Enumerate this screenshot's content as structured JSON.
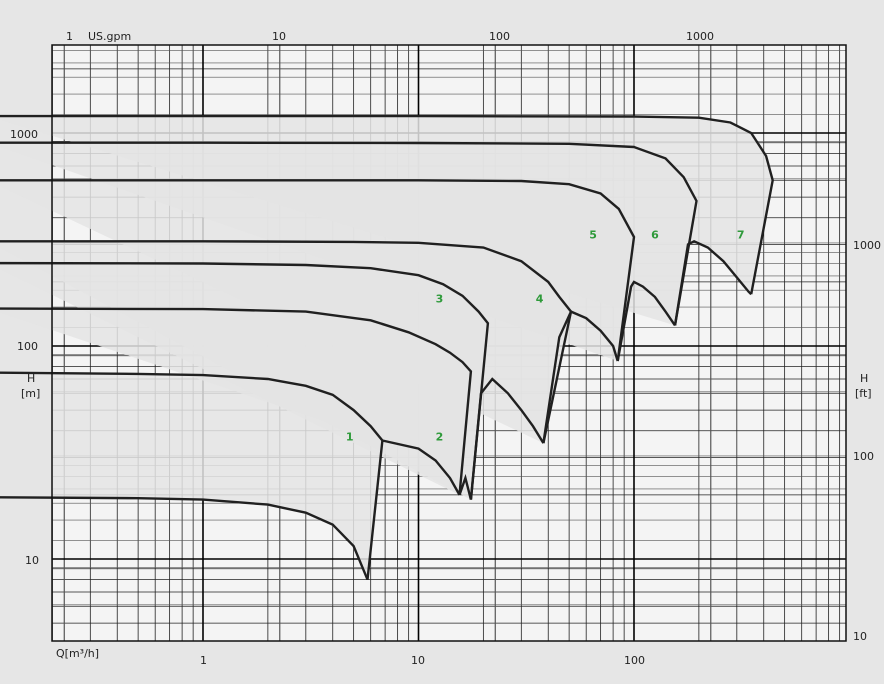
{
  "chart_data": {
    "type": "line",
    "title": "",
    "x_scale": "log",
    "y_scale": "log",
    "grid": true,
    "colors": {
      "page_background": "#e6e6e6",
      "plot_background": "#f4f4f4",
      "zone_fill": "#e4e4e4",
      "curve": "#202020",
      "label": "#2e9a3a"
    },
    "bottom_axis": {
      "label": "Q[m³/h]",
      "unit": "m³/h",
      "range": [
        0.1,
        1000
      ],
      "ticks": [
        "1",
        "10",
        "100"
      ]
    },
    "top_axis": {
      "label": "US.gpm",
      "unit": "US.gpm",
      "ticks": [
        "1",
        "10",
        "100",
        "1000"
      ]
    },
    "left_axis": {
      "label": "H",
      "unit": "[m]",
      "range": [
        4,
        2000
      ],
      "ticks": [
        "10",
        "100",
        "1000"
      ]
    },
    "right_axis": {
      "label": "H",
      "unit": "[ft]",
      "ticks": [
        "10",
        "100",
        "1000"
      ]
    },
    "zones": [
      {
        "label": "1",
        "label_at": [
          4.6,
          36
        ],
        "upper": {
          "q": [
            0.1,
            0.5,
            1,
            2,
            3,
            4,
            5,
            6,
            6.8
          ],
          "h": [
            75,
            74,
            73,
            70,
            65,
            59,
            50,
            42,
            36
          ]
        },
        "lower": {
          "q": [
            0.1,
            0.5,
            1,
            2,
            3,
            4,
            5,
            5.8
          ],
          "h": [
            19.5,
            19.3,
            19,
            18,
            16.5,
            14.5,
            11.5,
            8
          ]
        }
      },
      {
        "label": "2",
        "label_at": [
          12,
          36
        ],
        "upper": {
          "q": [
            0.1,
            1,
            3,
            6,
            9,
            12,
            14,
            16,
            17.5
          ],
          "h": [
            150,
            149,
            145,
            132,
            116,
            102,
            93,
            84,
            76
          ]
        },
        "lower": {
          "q": [
            6.8,
            10,
            12,
            14,
            15.5
          ],
          "h": [
            36,
            33,
            29,
            24,
            20
          ]
        }
      },
      {
        "label": "3",
        "label_at": [
          12,
          160
        ],
        "upper": {
          "q": [
            0.1,
            1,
            3,
            6,
            10,
            13,
            16,
            19,
            21
          ],
          "h": [
            245,
            244,
            240,
            232,
            215,
            195,
            172,
            145,
            128
          ]
        },
        "lower": {
          "q": [
            15.5,
            16.5,
            17.5
          ],
          "h": [
            20,
            24,
            19
          ]
        }
      },
      {
        "label": "4",
        "label_at": [
          35,
          160
        ],
        "upper": {
          "q": [
            0.1,
            1,
            5,
            10,
            20,
            30,
            40,
            45,
            51
          ],
          "h": [
            310,
            310,
            308,
            305,
            290,
            250,
            200,
            170,
            145
          ]
        },
        "lower": {
          "q": [
            17.5,
            19.5,
            22,
            26,
            30,
            34,
            38
          ],
          "h": [
            19,
            60,
            70,
            60,
            50,
            42,
            35
          ]
        }
      },
      {
        "label": "5",
        "label_at": [
          62,
          320
        ],
        "upper": {
          "q": [
            0.1,
            1,
            10,
            30,
            50,
            70,
            85,
            100
          ],
          "h": [
            600,
            600,
            600,
            595,
            575,
            520,
            440,
            325
          ]
        },
        "lower": {
          "q": [
            38,
            45,
            51,
            60,
            70,
            80,
            84
          ],
          "h": [
            35,
            110,
            145,
            135,
            118,
            100,
            85
          ]
        }
      },
      {
        "label": "6",
        "label_at": [
          120,
          320
        ],
        "upper": {
          "q": [
            0.1,
            1,
            10,
            50,
            100,
            140,
            170,
            195
          ],
          "h": [
            900,
            900,
            898,
            890,
            860,
            760,
            620,
            480
          ]
        },
        "lower": {
          "q": [
            84,
            97,
            100,
            110,
            125,
            140,
            155
          ],
          "h": [
            85,
            190,
            200,
            190,
            170,
            145,
            125
          ]
        }
      },
      {
        "label": "7",
        "label_at": [
          300,
          320
        ],
        "upper": {
          "q": [
            0.1,
            1,
            10,
            100,
            200,
            280,
            350,
            410,
            440
          ],
          "h": [
            1200,
            1200,
            1200,
            1195,
            1180,
            1120,
            1000,
            780,
            600
          ]
        },
        "lower": {
          "q": [
            155,
            178,
            190,
            220,
            260,
            300,
            340,
            350
          ],
          "h": [
            125,
            300,
            310,
            290,
            250,
            210,
            180,
            175
          ]
        }
      }
    ]
  }
}
